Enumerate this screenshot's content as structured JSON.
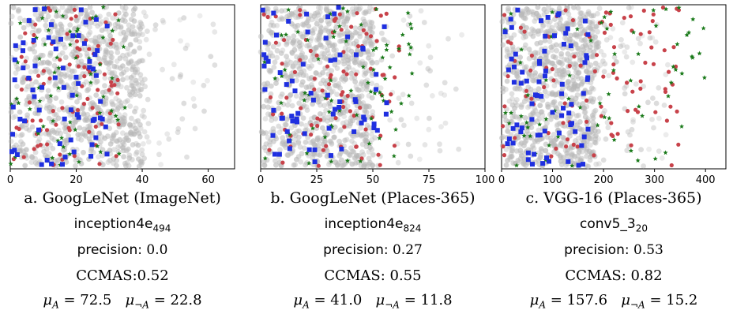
{
  "colors": {
    "background_points": "#b8b8b8",
    "blue_squares": "#1f2fe0",
    "red_circles": "#c8424a",
    "green_stars": "#1a7a1a"
  },
  "chart_data": [
    {
      "type": "scatter",
      "caption": "a. GoogLeNet (ImageNet)",
      "unit_name": "inception4e",
      "unit_index": "494",
      "precision_label": "precision:",
      "precision_value": "0.0",
      "ccmas": "CCMAS:0.52",
      "mu_a_value": "72.5",
      "mu_not_a_value": "22.8",
      "xlim": [
        0,
        68
      ],
      "xticks": [
        "0",
        "20",
        "40",
        "60"
      ],
      "xtick_values": [
        0,
        20,
        40,
        60
      ],
      "y_axis_visible": false,
      "grid": false,
      "background_max": 40,
      "background_tail_max": 62,
      "blue_max": 30,
      "red_max": 33,
      "green_max": 36,
      "counts": {
        "gray": 900,
        "blue": 70,
        "red": 90,
        "green": 65
      }
    },
    {
      "type": "scatter",
      "caption": "b. GoogLeNet (Places-365)",
      "unit_name": "inception4e",
      "unit_index": "824",
      "precision_label": "precision:",
      "precision_value": "0.27",
      "ccmas": "CCMAS: 0.55",
      "mu_a_value": "41.0",
      "mu_not_a_value": "11.8",
      "xlim": [
        0,
        100
      ],
      "xticks": [
        "0",
        "25",
        "50",
        "75",
        "100"
      ],
      "xtick_values": [
        0,
        25,
        50,
        75,
        100
      ],
      "y_axis_visible": false,
      "grid": false,
      "background_max": 50,
      "background_tail_max": 90,
      "blue_max": 57,
      "red_max": 62,
      "green_max": 68,
      "counts": {
        "gray": 900,
        "blue": 70,
        "red": 90,
        "green": 75
      }
    },
    {
      "type": "scatter",
      "caption": "c. VGG-16 (Places-365)",
      "unit_name": "conv5_3",
      "unit_index": "20",
      "precision_label": "precision:",
      "precision_value": "0.53",
      "ccmas": "CCMAS: 0.82",
      "mu_a_value": "157.6",
      "mu_not_a_value": "15.2",
      "xlim": [
        0,
        440
      ],
      "xticks": [
        "0",
        "100",
        "200",
        "300",
        "400"
      ],
      "xtick_values": [
        0,
        100,
        200,
        300,
        400
      ],
      "y_axis_visible": false,
      "grid": false,
      "background_max": 190,
      "background_tail_max": 330,
      "blue_max": 170,
      "red_max": 350,
      "green_max": 400,
      "counts": {
        "gray": 900,
        "blue": 75,
        "red": 100,
        "green": 70
      }
    }
  ]
}
